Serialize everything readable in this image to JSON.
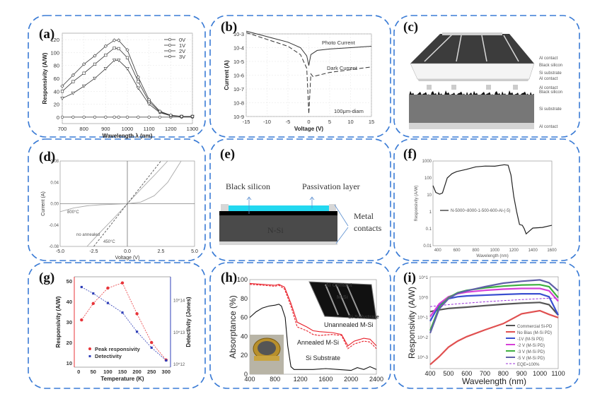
{
  "figure": {
    "border_color": "#3a7bd5",
    "panels": [
      "(a)",
      "(b)",
      "(c)",
      "(d)",
      "(e)",
      "(f)",
      "(g)",
      "(h)",
      "(i)"
    ]
  },
  "chart_data": [
    {
      "id": "a",
      "type": "line",
      "xlabel": "Wavelength λ (nm)",
      "ylabel": "Responsivity (A/W)",
      "xlim": [
        700,
        1300
      ],
      "ylim": [
        -10,
        130
      ],
      "xticks": [
        700,
        800,
        900,
        1000,
        1100,
        1200,
        1300
      ],
      "yticks": [
        0,
        20,
        40,
        60,
        80,
        100,
        120
      ],
      "x": [
        700,
        750,
        800,
        850,
        900,
        940,
        960,
        1000,
        1050,
        1100,
        1150,
        1200,
        1250,
        1300
      ],
      "series": [
        {
          "name": "0V",
          "values": [
            0,
            0,
            0,
            0,
            0,
            0,
            0,
            0,
            0,
            0,
            0,
            0,
            0,
            0
          ]
        },
        {
          "name": "1V",
          "values": [
            29,
            37,
            48,
            60,
            75,
            88,
            88,
            75,
            45,
            20,
            7,
            2,
            1,
            1
          ]
        },
        {
          "name": "2V",
          "values": [
            40,
            55,
            68,
            82,
            96,
            107,
            106,
            92,
            55,
            24,
            8,
            2,
            1,
            1
          ]
        },
        {
          "name": "3V",
          "values": [
            48,
            65,
            82,
            95,
            110,
            119,
            119,
            104,
            62,
            27,
            9,
            3,
            1,
            1
          ]
        }
      ]
    },
    {
      "id": "b",
      "type": "line",
      "xlabel": "Voltage (V)",
      "ylabel": "Current (A)",
      "xlim": [
        -15,
        15
      ],
      "ylog": true,
      "ylim_exp": [
        -9,
        -3
      ],
      "xticks": [
        -15,
        -10,
        -5,
        0,
        5,
        10,
        15
      ],
      "ytick_labels": [
        "10-3",
        "10-4",
        "10-5",
        "10-6",
        "10-7",
        "10-8",
        "10-9"
      ],
      "annotations": [
        "Photo Current",
        "Dark Current",
        "100μm-diam"
      ],
      "series": [
        {
          "name": "Photo Current",
          "x": [
            -15,
            -10,
            -5,
            -2,
            -0.5,
            0,
            0.5,
            2,
            5,
            10,
            15
          ],
          "log10_values": [
            -2.8,
            -3.2,
            -3.6,
            -4.0,
            -4.6,
            -5.3,
            -4.5,
            -4.2,
            -4.1,
            -4.0,
            -3.9
          ]
        },
        {
          "name": "Dark Current",
          "x": [
            -15,
            -10,
            -5,
            -2,
            -0.5,
            0,
            0.5,
            1,
            5,
            10,
            15
          ],
          "log10_values": [
            -2.9,
            -3.4,
            -3.9,
            -4.5,
            -5.5,
            -8.8,
            -5.9,
            -6.1,
            -5.8,
            -5.6,
            -5.4
          ]
        }
      ]
    },
    {
      "id": "c",
      "type": "diagram",
      "labels_top": [
        "Al contact",
        "Black silicon",
        "Si substrate",
        "Al contact"
      ],
      "labels_bottom": [
        "Al contact",
        "Black silicon",
        "Si substrate",
        "Al contact"
      ]
    },
    {
      "id": "d",
      "type": "line",
      "xlabel": "Voltage  (V)",
      "ylabel": "Current  (A)",
      "xlim": [
        -5,
        5
      ],
      "ylim": [
        -0.08,
        0.08
      ],
      "xtick_labels": [
        "-5.0",
        "-2.5",
        "0.0",
        "2.5",
        "5.0"
      ],
      "ytick_labels": [
        "0.08",
        "0.04",
        "0.00",
        "-0.04",
        "-0.08"
      ],
      "series": [
        {
          "name": "800°C",
          "x": [
            -5,
            -4,
            -3,
            -2,
            -1,
            0,
            1,
            2,
            3,
            4
          ],
          "values": [
            -0.015,
            -0.008,
            -0.004,
            -0.002,
            -0.001,
            0,
            0.003,
            0.015,
            0.04,
            0.08
          ]
        },
        {
          "name": "no annealed",
          "x": [
            -3,
            -2,
            -1,
            0,
            1,
            2,
            3
          ],
          "values": [
            -0.08,
            -0.053,
            -0.027,
            0,
            0.027,
            0.053,
            0.08
          ]
        },
        {
          "name": "450°C",
          "x": [
            -2.5,
            -1.25,
            0,
            1.25,
            2.5
          ],
          "values": [
            -0.08,
            -0.04,
            0,
            0.04,
            0.08
          ]
        }
      ]
    },
    {
      "id": "e",
      "type": "diagram",
      "labels": {
        "black_silicon": "Black silicon",
        "passivation": "Passivation layer",
        "substrate": "N-Si",
        "metal1": "Metal",
        "metal2": "contacts"
      }
    },
    {
      "id": "f",
      "type": "line",
      "xlabel": "Wavelength (nm)",
      "ylabel": "Responsivity (A/W)",
      "xlim": [
        350,
        1600
      ],
      "ylog": true,
      "ylim_exp": [
        -2,
        3
      ],
      "xticks": [
        400,
        600,
        800,
        1000,
        1200,
        1400,
        1600
      ],
      "ytick_labels": [
        "1000",
        "100",
        "10",
        "1",
        "0.1",
        "0.01"
      ],
      "legend": "N-5000~8000-1-500-600-Al-(-5)",
      "series": [
        {
          "name": "N-5000~8000-1-500-600-Al-(-5)",
          "x": [
            350,
            380,
            420,
            450,
            500,
            550,
            600,
            700,
            800,
            900,
            1000,
            1100,
            1140,
            1170,
            1200,
            1230,
            1260,
            1290,
            1310,
            1330,
            1360,
            1400,
            1500,
            1600
          ],
          "values": [
            35,
            14,
            11,
            13,
            100,
            180,
            240,
            320,
            450,
            500,
            490,
            600,
            560,
            150,
            8,
            1,
            0.18,
            0.16,
            0.1,
            0.05,
            0.07,
            0.11,
            0.12,
            0.16
          ]
        }
      ]
    },
    {
      "id": "g",
      "type": "line",
      "xlabel": "Temperature (K)",
      "ylabel": "Responsivity (A/W)",
      "y2label": "Detectivity (Jones)",
      "xlim": [
        -15,
        315
      ],
      "ylim": [
        8,
        52
      ],
      "xticks": [
        0,
        50,
        100,
        150,
        200,
        250,
        300
      ],
      "yticks": [
        10,
        20,
        30,
        40,
        50
      ],
      "y2ticks": [
        "10^12",
        "10^13",
        "10^14"
      ],
      "x": [
        10,
        50,
        100,
        150,
        200,
        250,
        300
      ],
      "series": [
        {
          "name": "Peak responsivity",
          "color": "#e8353a",
          "values": [
            31,
            39,
            46.5,
            49,
            34,
            20,
            11.5
          ]
        },
        {
          "name": "Detectivity",
          "color": "#2f3fb8",
          "axis": "right",
          "log10_values": [
            14.4,
            14.2,
            13.9,
            13.6,
            13.0,
            12.5,
            12.1
          ]
        }
      ]
    },
    {
      "id": "h",
      "type": "line",
      "xlabel": "",
      "ylabel": "Absorptance (%)",
      "xlim": [
        400,
        2400
      ],
      "ylim": [
        0,
        100
      ],
      "xticks": [
        400,
        800,
        1200,
        1600,
        2000,
        2400
      ],
      "yticks": [
        0,
        20,
        40,
        60,
        80,
        100
      ],
      "annotations": [
        "Unannealed M-Si",
        "Annealed M-Si",
        "Si Substrate"
      ],
      "inset_labels": [
        "Al Contact",
        "M-Si",
        "Si Substrate"
      ],
      "series": [
        {
          "name": "Unannealed M-Si",
          "color": "#e8202a",
          "x": [
            400,
            600,
            800,
            860,
            950,
            1050,
            1150,
            1300,
            1400,
            1500,
            1700,
            1850,
            1950,
            2050,
            2200,
            2300,
            2400
          ],
          "values": [
            96,
            95,
            94,
            95,
            92,
            75,
            55,
            50,
            46,
            45,
            44,
            42,
            30,
            35,
            38,
            37,
            30
          ]
        },
        {
          "name": "Annealed M-Si",
          "color": "#e8202a",
          "dash": true,
          "x": [
            400,
            600,
            800,
            860,
            950,
            1050,
            1150,
            1300,
            1400,
            1500,
            1700,
            1850,
            1950,
            2050,
            2200,
            2300,
            2400
          ],
          "values": [
            95,
            94,
            93,
            94,
            90,
            72,
            50,
            46,
            42,
            41,
            42,
            41,
            27,
            32,
            35,
            34,
            27
          ]
        },
        {
          "name": "Si Substrate",
          "color": "#111111",
          "x": [
            400,
            500,
            600,
            700,
            800,
            860,
            900,
            960,
            1000,
            1050,
            1100,
            1200,
            1400,
            1600,
            1800,
            2000,
            2100,
            2200,
            2300,
            2400
          ],
          "values": [
            60,
            66,
            70,
            72,
            73,
            74,
            72,
            60,
            30,
            8,
            5,
            5,
            5,
            6,
            5,
            4,
            7,
            5,
            8,
            5
          ]
        }
      ]
    },
    {
      "id": "i",
      "type": "line",
      "xlabel": "Wavelength (nm)",
      "ylabel": "Responsivity (A/W)",
      "xlim": [
        400,
        1100
      ],
      "ylog": true,
      "ylim_exp": [
        -3.6,
        1
      ],
      "xticks": [
        400,
        500,
        600,
        700,
        800,
        900,
        1000,
        1100
      ],
      "ytick_labels": [
        "10^1",
        "10^0",
        "10^-1",
        "10^-2",
        "10^-3"
      ],
      "x": [
        400,
        450,
        500,
        550,
        600,
        700,
        800,
        900,
        1000,
        1050,
        1100
      ],
      "series": [
        {
          "name": "Commercial Si-PD",
          "color": "#555555",
          "values": [
            0.18,
            0.22,
            0.26,
            0.28,
            0.3,
            0.36,
            0.42,
            0.48,
            0.52,
            0.4,
            0.12
          ]
        },
        {
          "name": "No Bias (M-Si PD)",
          "color": "#e05050",
          "values": [
            0.0004,
            0.001,
            0.003,
            0.006,
            0.01,
            0.022,
            0.045,
            0.14,
            0.2,
            0.13,
            0.09
          ]
        },
        {
          "name": "-1V (M-Si PD)",
          "color": "#3a4fd0",
          "values": [
            0.06,
            0.4,
            0.8,
            1.0,
            1.1,
            1.2,
            1.3,
            1.4,
            1.4,
            1.0,
            0.12
          ]
        },
        {
          "name": "-2 V (M-Si PD)",
          "color": "#d640d6",
          "values": [
            0.1,
            0.45,
            1.0,
            1.4,
            1.7,
            2.1,
            2.4,
            2.6,
            2.6,
            2.0,
            0.6
          ]
        },
        {
          "name": "-3 V (M-Si PD)",
          "color": "#3fb03f",
          "values": [
            0.02,
            0.3,
            0.9,
            1.6,
            2.1,
            2.8,
            3.4,
            3.9,
            4.0,
            3.2,
            0.9
          ]
        },
        {
          "name": "-5 V (M-Si PD)",
          "color": "#6060a8",
          "values": [
            0.015,
            0.25,
            0.8,
            1.5,
            2.0,
            3.2,
            4.8,
            6.0,
            7.0,
            5.0,
            2.0
          ]
        },
        {
          "name": "EQE=100%",
          "color": "#9b30d9",
          "dash": true,
          "values": [
            0.32,
            0.36,
            0.4,
            0.44,
            0.48,
            0.56,
            0.64,
            0.72,
            0.8,
            0.84,
            0.88
          ]
        }
      ]
    }
  ]
}
